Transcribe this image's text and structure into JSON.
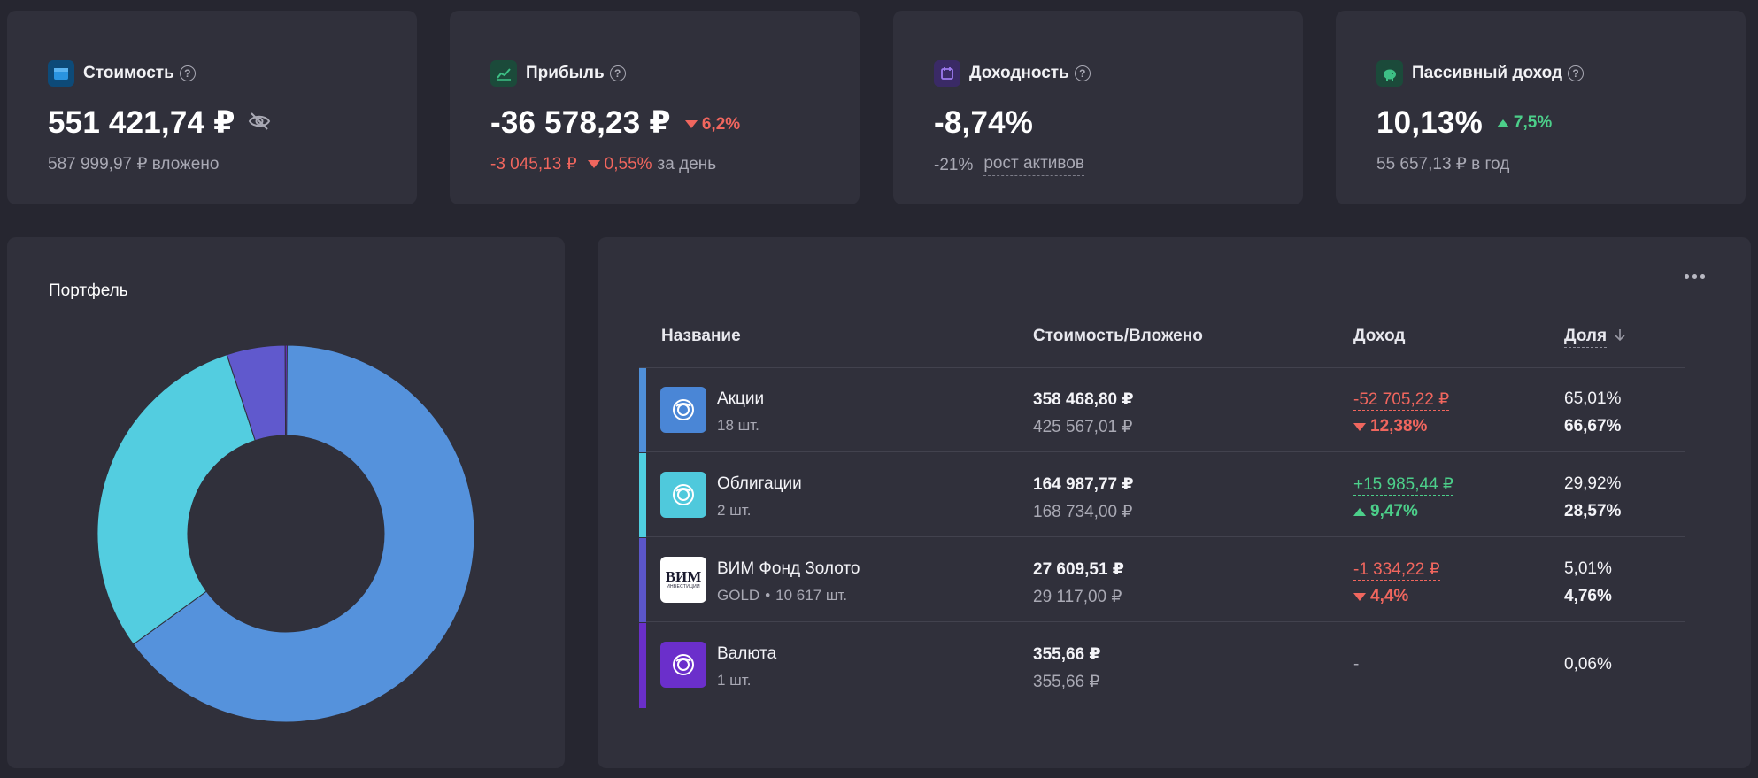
{
  "kpis": {
    "value": {
      "title": "Стоимость",
      "icon": "wallet-icon",
      "icon_color": "#2a94e0",
      "amount": "551 421,74 ₽",
      "invested": "587 999,97 ₽ вложено"
    },
    "profit": {
      "title": "Прибыль",
      "icon": "chart-line-icon",
      "icon_color": "#3dbf85",
      "amount": "-36 578,23 ₽",
      "change": "6,2%",
      "day_amount": "-3 045,13 ₽",
      "day_change": "0,55%",
      "day_suffix": "за день"
    },
    "yield": {
      "title": "Доходность",
      "icon": "calendar-icon",
      "icon_color": "#8a63e6",
      "amount": "-8,74%",
      "growth_value": "-21%",
      "growth_label": "рост активов"
    },
    "passive": {
      "title": "Пассивный доход",
      "icon": "piggy-bank-icon",
      "icon_color": "#3dbf85",
      "amount": "10,13%",
      "change": "7,5%",
      "per_year": "55 657,13 ₽ в год"
    }
  },
  "portfolio": {
    "title": "Портфель"
  },
  "table": {
    "headers": {
      "name": "Название",
      "value": "Стоимость/Вложено",
      "income": "Доход",
      "share": "Доля"
    },
    "rows": [
      {
        "name": "Акции",
        "meta": "18 шт.",
        "value": "358 468,80 ₽",
        "invested": "425 567,01 ₽",
        "income": "-52 705,22 ₽",
        "income_pct": "12,38%",
        "share": "65,01%",
        "share_invested": "66,67%",
        "color": "#4f8fd8"
      },
      {
        "name": "Облигации",
        "meta": "2 шт.",
        "value": "164 987,77 ₽",
        "invested": "168 734,00 ₽",
        "income": "+15 985,44 ₽",
        "income_pct": "9,47%",
        "share": "29,92%",
        "share_invested": "28,57%",
        "color": "#4fcfe0"
      },
      {
        "name": "ВИМ Фонд Золото",
        "ticker": "GOLD",
        "meta": "10 617 шт.",
        "value": "27 609,51 ₽",
        "invested": "29 117,00 ₽",
        "income": "-1 334,22 ₽",
        "income_pct": "4,4%",
        "share": "5,01%",
        "share_invested": "4,76%",
        "color": "#5b56c9",
        "logo_text": "ВИМ",
        "logo_subtext": "ИНВЕСТИЦИИ"
      },
      {
        "name": "Валюта",
        "meta": "1 шт.",
        "value": "355,66 ₽",
        "invested": "355,66 ₽",
        "income": "-",
        "share": "0,06%",
        "color": "#6a2fc9"
      }
    ]
  },
  "chart_data": {
    "type": "pie",
    "categories": [
      "Акции",
      "Облигации",
      "ВИМ Фонд Золото",
      "Валюта"
    ],
    "values": [
      65.01,
      29.92,
      5.01,
      0.06
    ],
    "colors": [
      "#5592dc",
      "#53cde0",
      "#6059cd",
      "#6a2fc9"
    ],
    "title": "Портфель"
  }
}
